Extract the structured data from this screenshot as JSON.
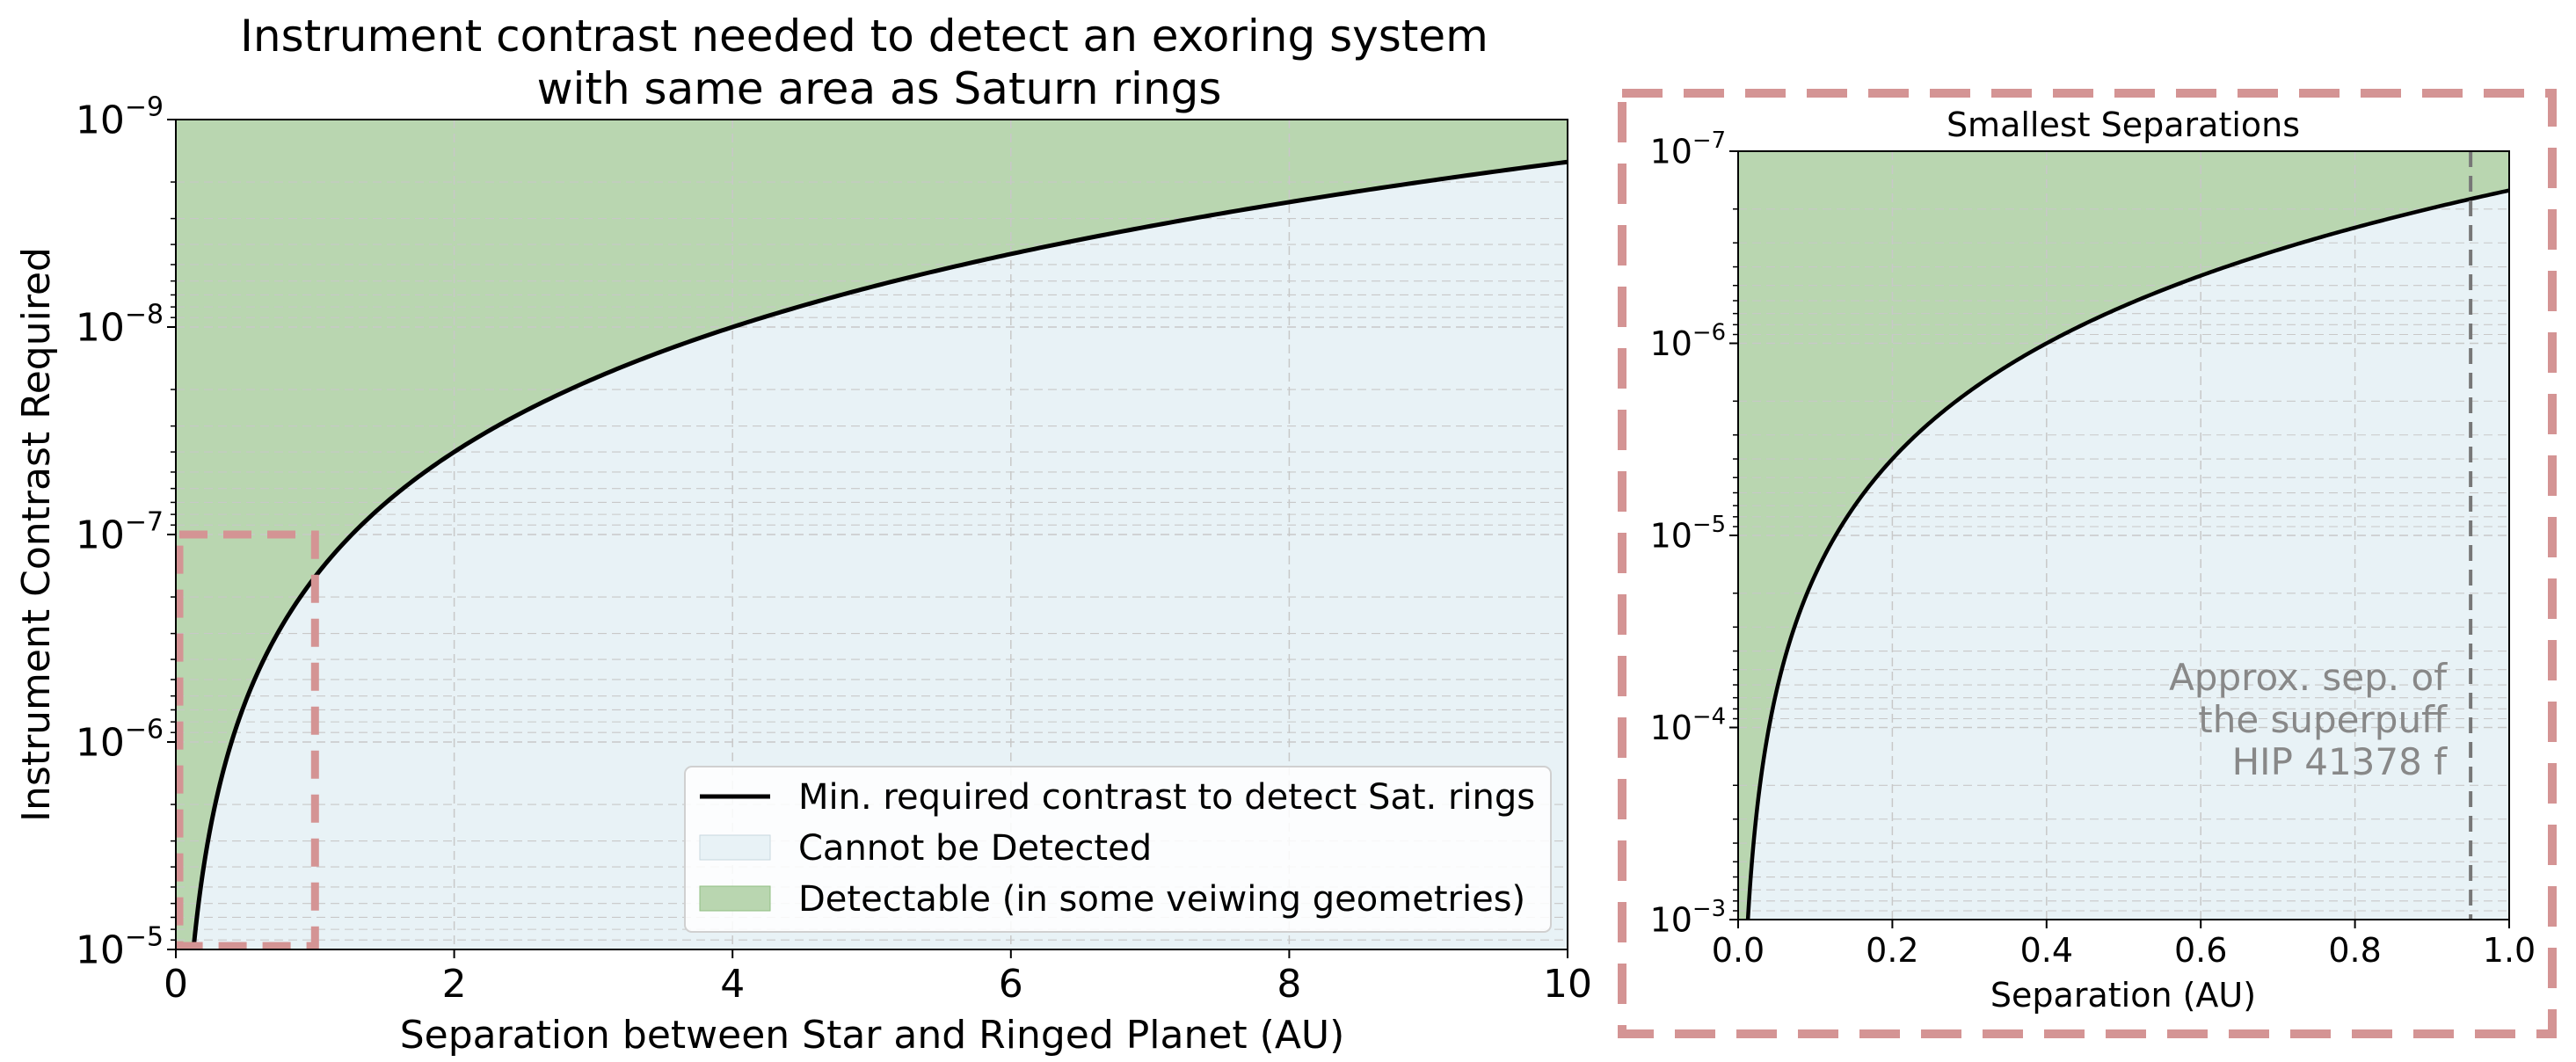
{
  "colors": {
    "detectable_fill": "#b9d6b0",
    "undetectable_fill": "#e8f2f6",
    "curve": "#000000",
    "highlight_box": "#d49494",
    "grid": "#c8c8c8",
    "marker_line": "#777777",
    "annotation_text": "#888888"
  },
  "chart_data": [
    {
      "type": "line",
      "title": "Instrument contrast needed to detect an exoring system\nwith same area as Saturn rings",
      "xlabel": "Separation between Star and Ringed Planet (AU)",
      "ylabel": "Instrument Contrast Required",
      "xlim": [
        0,
        10
      ],
      "ylim_log10": [
        -5,
        -9
      ],
      "y_scale": "log (inverted)",
      "x_ticks": [
        "0",
        "2",
        "4",
        "6",
        "8",
        "10"
      ],
      "y_ticks": [
        {
          "base": "10",
          "exp": "−5"
        },
        {
          "base": "10",
          "exp": "−6"
        },
        {
          "base": "10",
          "exp": "−7"
        },
        {
          "base": "10",
          "exp": "−8"
        },
        {
          "base": "10",
          "exp": "−9"
        }
      ],
      "grid": true,
      "curve": {
        "name": "Min. required contrast to detect Sat. rings",
        "x": [
          0.1,
          0.2,
          0.5,
          1.0,
          2.0,
          4.0,
          6.0,
          8.0,
          10.0
        ],
        "y": [
          1.6e-05,
          4e-06,
          6.4e-07,
          1.6e-07,
          4e-08,
          1e-08,
          4.4e-09,
          2.5e-09,
          1.6e-09
        ]
      },
      "regions": [
        {
          "name": "Cannot be Detected",
          "side": "below curve"
        },
        {
          "name": "Detectable (in some veiwing geometries)",
          "side": "above curve"
        }
      ],
      "legend": {
        "placement": "lower-right",
        "entries": [
          "Min. required contrast to detect Sat. rings",
          "Cannot be Detected",
          "Detectable (in some veiwing geometries)"
        ]
      },
      "highlight_region": {
        "x": [
          0,
          1
        ],
        "y_contrast": [
          1e-05,
          1e-07
        ],
        "style": "dashed box"
      }
    },
    {
      "type": "line",
      "title": "Smallest Separations",
      "xlabel": "Separation (AU)",
      "ylabel": "",
      "xlim": [
        0,
        1
      ],
      "ylim_log10": [
        -3,
        -7
      ],
      "y_scale": "log (inverted)",
      "x_ticks": [
        "0.0",
        "0.2",
        "0.4",
        "0.6",
        "0.8",
        "1.0"
      ],
      "y_ticks": [
        {
          "base": "10",
          "exp": "−3"
        },
        {
          "base": "10",
          "exp": "−4"
        },
        {
          "base": "10",
          "exp": "−5"
        },
        {
          "base": "10",
          "exp": "−6"
        },
        {
          "base": "10",
          "exp": "−7"
        }
      ],
      "grid": true,
      "curve": {
        "x": [
          0.01,
          0.02,
          0.05,
          0.1,
          0.2,
          0.4,
          0.6,
          0.8,
          1.0
        ],
        "y": [
          0.0016,
          0.0004,
          6.4e-05,
          1.6e-05,
          4e-06,
          1e-06,
          4.4e-07,
          2.5e-07,
          1.6e-07
        ]
      },
      "marker": {
        "x": 0.95,
        "style": "dashed vertical line"
      },
      "annotation": [
        "Approx. sep. of",
        "the superpuff",
        "HIP 41378 f"
      ]
    }
  ]
}
